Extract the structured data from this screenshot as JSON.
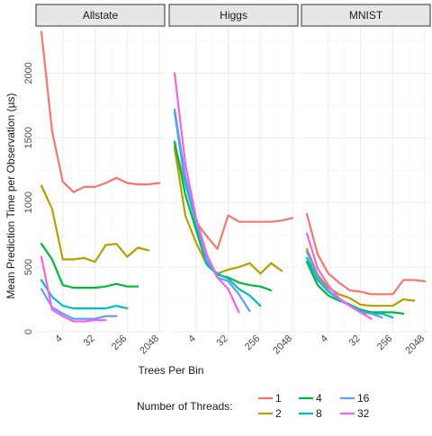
{
  "chart_data": {
    "type": "line",
    "xlabel": "Trees Per Bin",
    "ylabel": "Mean Prediction Time per Observation (µs)",
    "x_scale": "log2",
    "xlim": [
      1,
      2048
    ],
    "ylim": [
      0,
      2350
    ],
    "x_ticks": [
      4,
      32,
      256,
      2048
    ],
    "x_tick_labels": [
      "4",
      "32",
      "256",
      "2048"
    ],
    "y_ticks": [
      0,
      500,
      1000,
      1500,
      2000
    ],
    "y_tick_labels": [
      "0",
      "500",
      "1000",
      "1500",
      "2000"
    ],
    "grid": true,
    "legend": {
      "title": "Number of Threads:",
      "placement": "bottom",
      "entries": [
        {
          "label": "1",
          "color": "#f8766d"
        },
        {
          "label": "2",
          "color": "#b79f00"
        },
        {
          "label": "4",
          "color": "#00ba38"
        },
        {
          "label": "8",
          "color": "#00bfc4"
        },
        {
          "label": "16",
          "color": "#619cff"
        },
        {
          "label": "32",
          "color": "#f564e3"
        }
      ]
    },
    "panels": [
      {
        "title": "Allstate",
        "series": [
          {
            "name": "1",
            "x": [
              1,
              2,
              4,
              8,
              16,
              32,
              64,
              128,
              256,
              512,
              1024,
              2048
            ],
            "y": [
              2320,
              1550,
              1160,
              1080,
              1120,
              1120,
              1150,
              1190,
              1150,
              1140,
              1140,
              1150
            ]
          },
          {
            "name": "2",
            "x": [
              1,
              2,
              4,
              8,
              16,
              32,
              64,
              128,
              256,
              512,
              1024
            ],
            "y": [
              1130,
              950,
              560,
              560,
              570,
              540,
              670,
              680,
              580,
              650,
              630
            ]
          },
          {
            "name": "4",
            "x": [
              1,
              2,
              4,
              8,
              16,
              32,
              64,
              128,
              256,
              512
            ],
            "y": [
              680,
              560,
              360,
              340,
              340,
              340,
              350,
              370,
              350,
              350
            ]
          },
          {
            "name": "8",
            "x": [
              1,
              2,
              4,
              8,
              16,
              32,
              64,
              128,
              256
            ],
            "y": [
              400,
              270,
              200,
              180,
              180,
              180,
              180,
              200,
              180
            ]
          },
          {
            "name": "16",
            "x": [
              1,
              2,
              4,
              8,
              16,
              32,
              64,
              128
            ],
            "y": [
              330,
              190,
              140,
              100,
              100,
              100,
              120,
              120
            ]
          },
          {
            "name": "32",
            "x": [
              1,
              2,
              4,
              8,
              16,
              32,
              64
            ],
            "y": [
              580,
              170,
              120,
              80,
              80,
              90,
              90
            ]
          }
        ]
      },
      {
        "title": "Higgs",
        "series": [
          {
            "name": "1",
            "x": [
              1,
              2,
              4,
              8,
              16,
              32,
              64,
              128,
              256,
              512,
              1024,
              2048
            ],
            "y": [
              1440,
              1150,
              850,
              740,
              640,
              900,
              850,
              850,
              850,
              850,
              860,
              880
            ]
          },
          {
            "name": "2",
            "x": [
              1,
              2,
              4,
              8,
              16,
              32,
              64,
              128,
              256,
              512,
              1024
            ],
            "y": [
              1420,
              900,
              690,
              520,
              450,
              480,
              500,
              530,
              450,
              530,
              470
            ]
          },
          {
            "name": "4",
            "x": [
              1,
              2,
              4,
              8,
              16,
              32,
              64,
              128,
              256,
              512
            ],
            "y": [
              1470,
              1060,
              790,
              520,
              440,
              420,
              380,
              360,
              350,
              320
            ]
          },
          {
            "name": "8",
            "x": [
              1,
              2,
              4,
              8,
              16,
              32,
              64,
              128,
              256
            ],
            "y": [
              1700,
              1150,
              840,
              530,
              450,
              410,
              330,
              280,
              200
            ]
          },
          {
            "name": "16",
            "x": [
              1,
              2,
              4,
              8,
              16,
              32,
              64,
              128
            ],
            "y": [
              1720,
              1200,
              860,
              560,
              420,
              390,
              290,
              160
            ]
          },
          {
            "name": "32",
            "x": [
              1,
              2,
              4,
              8,
              16,
              32,
              64
            ],
            "y": [
              2000,
              1300,
              880,
              600,
              420,
              330,
              150
            ]
          }
        ]
      },
      {
        "title": "MNIST",
        "series": [
          {
            "name": "1",
            "x": [
              1,
              2,
              4,
              8,
              16,
              32,
              64,
              128,
              256,
              512,
              1024,
              2048
            ],
            "y": [
              910,
              600,
              450,
              380,
              320,
              310,
              290,
              290,
              290,
              400,
              400,
              390
            ]
          },
          {
            "name": "2",
            "x": [
              1,
              2,
              4,
              8,
              16,
              32,
              64,
              128,
              256,
              512,
              1024
            ],
            "y": [
              640,
              440,
              340,
              290,
              260,
              210,
              200,
              200,
              200,
              250,
              240
            ]
          },
          {
            "name": "4",
            "x": [
              1,
              2,
              4,
              8,
              16,
              32,
              64,
              128,
              256,
              512
            ],
            "y": [
              540,
              360,
              280,
              240,
              210,
              170,
              150,
              150,
              150,
              140
            ]
          },
          {
            "name": "8",
            "x": [
              1,
              2,
              4,
              8,
              16,
              32,
              64,
              128,
              256
            ],
            "y": [
              570,
              400,
              310,
              250,
              210,
              160,
              140,
              140,
              110
            ]
          },
          {
            "name": "16",
            "x": [
              1,
              2,
              4,
              8,
              16,
              32,
              64,
              128
            ],
            "y": [
              620,
              420,
              320,
              250,
              200,
              150,
              140,
              110
            ]
          },
          {
            "name": "32",
            "x": [
              1,
              2,
              4,
              8,
              16,
              32,
              64
            ],
            "y": [
              760,
              490,
              360,
              260,
              200,
              150,
              100
            ]
          }
        ]
      }
    ]
  }
}
